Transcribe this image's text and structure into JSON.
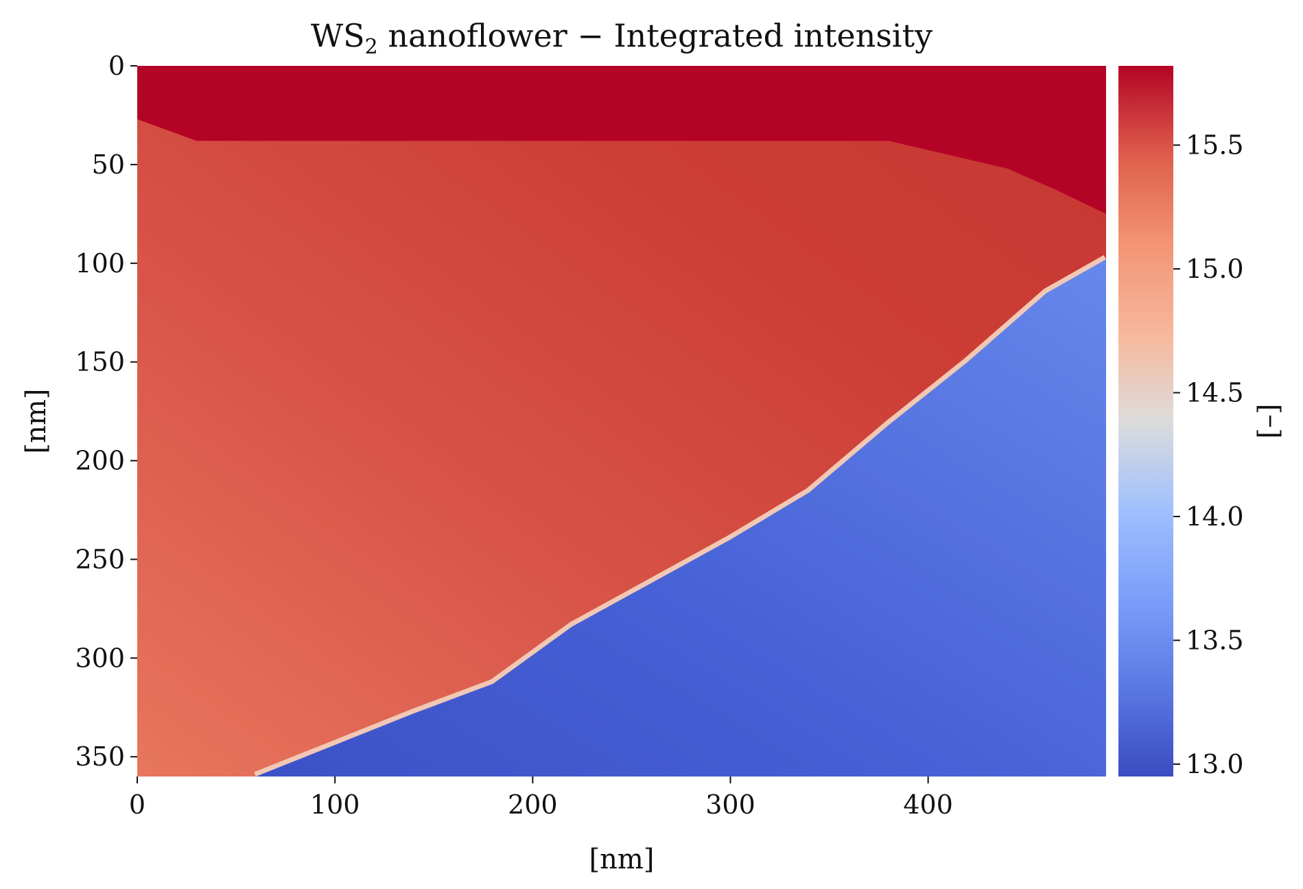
{
  "chart_data": {
    "type": "heatmap",
    "title": {
      "main": "WS",
      "subscript": "2",
      "rest": " nanoflower − Integrated intensity"
    },
    "xlabel": "[nm]",
    "ylabel": "[nm]",
    "xlim": [
      0,
      490
    ],
    "ylim": [
      360,
      0
    ],
    "x_ticks": [
      0,
      100,
      200,
      300,
      400
    ],
    "y_ticks": [
      0,
      50,
      100,
      150,
      200,
      250,
      300,
      350
    ],
    "colormap": "coolwarm",
    "colorbar": {
      "label": "[–]",
      "range": [
        12.95,
        15.82
      ],
      "ticks": [
        "13.0",
        "13.5",
        "14.0",
        "14.5",
        "15.0",
        "15.5"
      ],
      "tick_values": [
        13.0,
        13.5,
        14.0,
        14.5,
        15.0,
        15.5
      ]
    },
    "regions": [
      {
        "name": "top band",
        "value_range": [
          15.75,
          15.82
        ],
        "color": "#b40426"
      },
      {
        "name": "upper-left region",
        "value_range": [
          15.3,
          15.55
        ],
        "color": "#cc3a33"
      },
      {
        "name": "lower-right region",
        "value_range": [
          13.0,
          13.45
        ],
        "color": "#4d6fe0"
      }
    ],
    "boundaries": {
      "top_band_lower_edge": [
        [
          0,
          27
        ],
        [
          30,
          38
        ],
        [
          380,
          38
        ],
        [
          440,
          52
        ],
        [
          465,
          63
        ],
        [
          490,
          75
        ]
      ],
      "blue_region_edge": [
        [
          60,
          360
        ],
        [
          100,
          344
        ],
        [
          140,
          328
        ],
        [
          180,
          313
        ],
        [
          220,
          284
        ],
        [
          260,
          262
        ],
        [
          300,
          240
        ],
        [
          340,
          216
        ],
        [
          380,
          182
        ],
        [
          420,
          150
        ],
        [
          460,
          115
        ],
        [
          490,
          98
        ]
      ]
    },
    "grid": false,
    "legend": "none"
  }
}
